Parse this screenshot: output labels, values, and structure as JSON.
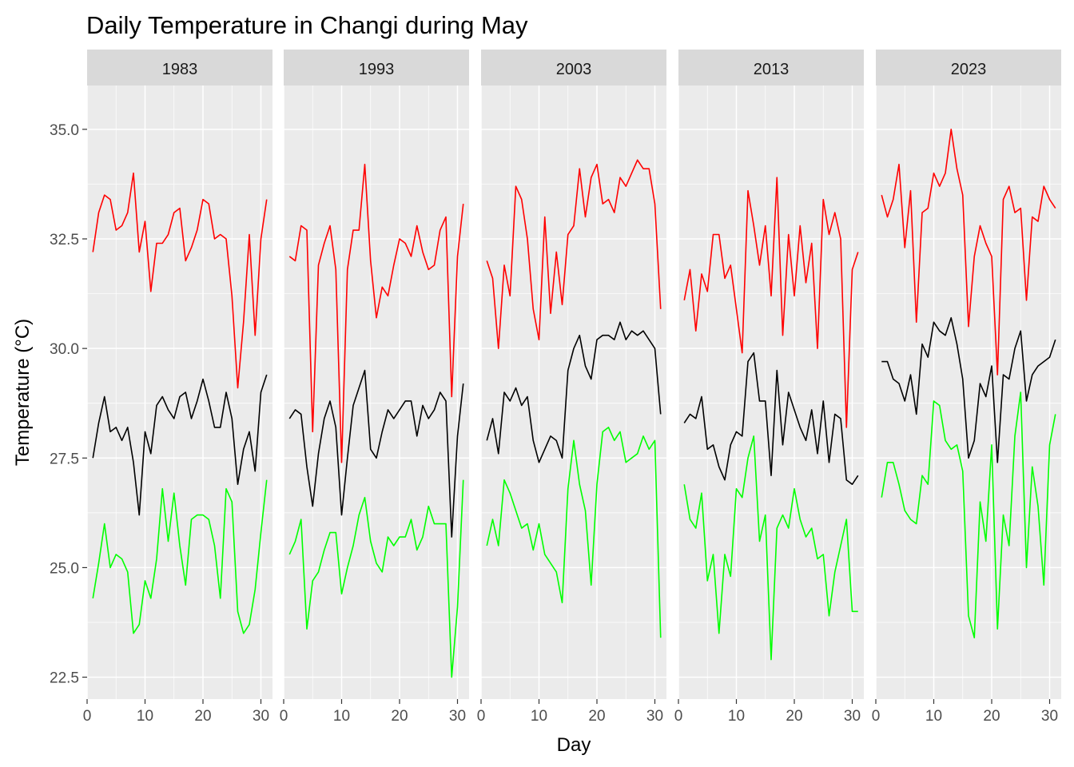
{
  "chart_data": {
    "type": "line",
    "title": "Daily Temperature in Changi during May",
    "xlabel": "Day",
    "ylabel": "Temperature (°C)",
    "xlim": [
      0,
      32
    ],
    "ylim": [
      22.0,
      36.0
    ],
    "x_ticks": [
      0,
      10,
      20,
      30
    ],
    "y_ticks": [
      22.5,
      25.0,
      27.5,
      30.0,
      32.5,
      35.0
    ],
    "y_tick_labels": [
      "22.5",
      "25.0",
      "27.5",
      "30.0",
      "32.5",
      "35.0"
    ],
    "grid": true,
    "legend": "none",
    "series_colors": {
      "max": "#ff0000",
      "mean": "#000000",
      "min": "#00ff00"
    },
    "panels": [
      {
        "label": "1983",
        "x": [
          1,
          2,
          3,
          4,
          5,
          6,
          7,
          8,
          9,
          10,
          11,
          12,
          13,
          14,
          15,
          16,
          17,
          18,
          19,
          20,
          21,
          22,
          23,
          24,
          25,
          26,
          27,
          28,
          29,
          30,
          31
        ],
        "max": [
          32.2,
          33.1,
          33.5,
          33.4,
          32.7,
          32.8,
          33.1,
          34.0,
          32.2,
          32.9,
          31.3,
          32.4,
          32.4,
          32.6,
          33.1,
          33.2,
          32.0,
          32.3,
          32.7,
          33.4,
          33.3,
          32.5,
          32.6,
          32.5,
          31.2,
          29.1,
          30.6,
          32.6,
          30.3,
          32.5,
          33.4
        ],
        "mean": [
          27.5,
          28.3,
          28.9,
          28.1,
          28.2,
          27.9,
          28.2,
          27.4,
          26.2,
          28.1,
          27.6,
          28.7,
          28.9,
          28.6,
          28.4,
          28.9,
          29.0,
          28.4,
          28.8,
          29.3,
          28.8,
          28.2,
          28.2,
          29.0,
          28.4,
          26.9,
          27.7,
          28.1,
          27.2,
          29.0,
          29.4
        ],
        "min": [
          24.3,
          25.1,
          26.0,
          25.0,
          25.3,
          25.2,
          24.9,
          23.5,
          23.7,
          24.7,
          24.3,
          25.2,
          26.8,
          25.6,
          26.7,
          25.5,
          24.6,
          26.1,
          26.2,
          26.2,
          26.1,
          25.5,
          24.3,
          26.8,
          26.5,
          24.0,
          23.5,
          23.7,
          24.5,
          25.8,
          27.0
        ]
      },
      {
        "label": "1993",
        "x": [
          1,
          2,
          3,
          4,
          5,
          6,
          7,
          8,
          9,
          10,
          11,
          12,
          13,
          14,
          15,
          16,
          17,
          18,
          19,
          20,
          21,
          22,
          23,
          24,
          25,
          26,
          27,
          28,
          29,
          30,
          31
        ],
        "max": [
          32.1,
          32.0,
          32.8,
          32.7,
          28.1,
          31.9,
          32.4,
          32.8,
          31.8,
          27.4,
          31.8,
          32.7,
          32.7,
          34.2,
          32.0,
          30.7,
          31.4,
          31.2,
          31.9,
          32.5,
          32.4,
          32.1,
          32.8,
          32.2,
          31.8,
          31.9,
          32.7,
          33.0,
          28.9,
          32.1,
          33.3
        ],
        "mean": [
          28.4,
          28.6,
          28.5,
          27.3,
          26.4,
          27.6,
          28.4,
          28.8,
          28.2,
          26.2,
          27.5,
          28.7,
          29.1,
          29.5,
          27.7,
          27.5,
          28.1,
          28.6,
          28.4,
          28.6,
          28.8,
          28.8,
          28.0,
          28.7,
          28.4,
          28.6,
          29.0,
          28.8,
          25.7,
          28.0,
          29.2
        ],
        "min": [
          25.3,
          25.6,
          26.1,
          23.6,
          24.7,
          24.9,
          25.4,
          25.8,
          25.8,
          24.4,
          25.0,
          25.5,
          26.2,
          26.6,
          25.6,
          25.1,
          24.9,
          25.7,
          25.5,
          25.7,
          25.7,
          26.1,
          25.4,
          25.7,
          26.4,
          26.0,
          26.0,
          26.0,
          22.5,
          24.1,
          27.0
        ]
      },
      {
        "label": "2003",
        "x": [
          1,
          2,
          3,
          4,
          5,
          6,
          7,
          8,
          9,
          10,
          11,
          12,
          13,
          14,
          15,
          16,
          17,
          18,
          19,
          20,
          21,
          22,
          23,
          24,
          25,
          26,
          27,
          28,
          29,
          30,
          31
        ],
        "max": [
          32.0,
          31.6,
          30.0,
          31.9,
          31.2,
          33.7,
          33.4,
          32.5,
          30.9,
          30.2,
          33.0,
          30.8,
          32.2,
          31.0,
          32.6,
          32.8,
          34.1,
          33.0,
          33.9,
          34.2,
          33.3,
          33.4,
          33.1,
          33.9,
          33.7,
          34.0,
          34.3,
          34.1,
          34.1,
          33.3,
          30.9
        ],
        "mean": [
          27.9,
          28.4,
          27.6,
          29.0,
          28.8,
          29.1,
          28.7,
          28.9,
          27.9,
          27.4,
          27.7,
          28.0,
          27.9,
          27.5,
          29.5,
          30.0,
          30.3,
          29.6,
          29.3,
          30.2,
          30.3,
          30.3,
          30.2,
          30.6,
          30.2,
          30.4,
          30.3,
          30.4,
          30.2,
          30.0,
          28.5
        ],
        "min": [
          25.5,
          26.1,
          25.5,
          27.0,
          26.7,
          26.3,
          25.9,
          26.0,
          25.4,
          26.0,
          25.3,
          25.1,
          24.9,
          24.2,
          26.8,
          27.9,
          26.9,
          26.3,
          24.6,
          26.9,
          28.1,
          28.2,
          27.9,
          28.1,
          27.4,
          27.5,
          27.6,
          28.0,
          27.7,
          27.9,
          23.4
        ]
      },
      {
        "label": "2013",
        "x": [
          1,
          2,
          3,
          4,
          5,
          6,
          7,
          8,
          9,
          10,
          11,
          12,
          13,
          14,
          15,
          16,
          17,
          18,
          19,
          20,
          21,
          22,
          23,
          24,
          25,
          26,
          27,
          28,
          29,
          30,
          31
        ],
        "max": [
          31.1,
          31.8,
          30.4,
          31.7,
          31.3,
          32.6,
          32.6,
          31.6,
          31.9,
          30.9,
          29.9,
          33.6,
          32.8,
          31.9,
          32.8,
          31.2,
          33.9,
          30.3,
          32.6,
          31.2,
          32.8,
          31.5,
          32.4,
          30.0,
          33.4,
          32.6,
          33.1,
          32.5,
          28.2,
          31.8,
          32.2
        ],
        "mean": [
          28.3,
          28.5,
          28.4,
          28.9,
          27.7,
          27.8,
          27.3,
          27.0,
          27.8,
          28.1,
          28.0,
          29.7,
          29.9,
          28.8,
          28.8,
          27.1,
          29.5,
          27.8,
          29.0,
          28.6,
          28.2,
          27.9,
          28.6,
          27.6,
          28.8,
          27.4,
          28.5,
          28.4,
          27.0,
          26.9,
          27.1
        ],
        "min": [
          26.9,
          26.1,
          25.9,
          26.7,
          24.7,
          25.3,
          23.5,
          25.3,
          24.8,
          26.8,
          26.6,
          27.5,
          28.0,
          25.6,
          26.2,
          22.9,
          25.9,
          26.2,
          25.9,
          26.8,
          26.1,
          25.7,
          25.9,
          25.2,
          25.3,
          23.9,
          24.9,
          25.5,
          26.1,
          24.0,
          24.0
        ]
      },
      {
        "label": "2023",
        "x": [
          1,
          2,
          3,
          4,
          5,
          6,
          7,
          8,
          9,
          10,
          11,
          12,
          13,
          14,
          15,
          16,
          17,
          18,
          19,
          20,
          21,
          22,
          23,
          24,
          25,
          26,
          27,
          28,
          29,
          30,
          31
        ],
        "max": [
          33.5,
          33.0,
          33.4,
          34.2,
          32.3,
          33.6,
          30.6,
          33.1,
          33.2,
          34.0,
          33.7,
          34.0,
          35.0,
          34.1,
          33.5,
          30.5,
          32.1,
          32.8,
          32.4,
          32.1,
          29.4,
          33.4,
          33.7,
          33.1,
          33.2,
          31.1,
          33.0,
          32.9,
          33.7,
          33.4,
          33.2
        ],
        "mean": [
          29.7,
          29.7,
          29.3,
          29.2,
          28.8,
          29.4,
          28.5,
          30.1,
          29.8,
          30.6,
          30.4,
          30.3,
          30.7,
          30.1,
          29.3,
          27.5,
          27.9,
          29.2,
          28.9,
          29.6,
          27.4,
          29.4,
          29.3,
          30.0,
          30.4,
          28.8,
          29.4,
          29.6,
          29.7,
          29.8,
          30.2
        ],
        "min": [
          26.6,
          27.4,
          27.4,
          26.9,
          26.3,
          26.1,
          26.0,
          27.1,
          26.9,
          28.8,
          28.7,
          27.9,
          27.7,
          27.8,
          27.2,
          23.9,
          23.4,
          26.5,
          25.6,
          27.8,
          23.6,
          26.2,
          25.5,
          28.0,
          29.0,
          25.0,
          27.3,
          26.4,
          24.6,
          27.8,
          28.5
        ]
      }
    ]
  }
}
